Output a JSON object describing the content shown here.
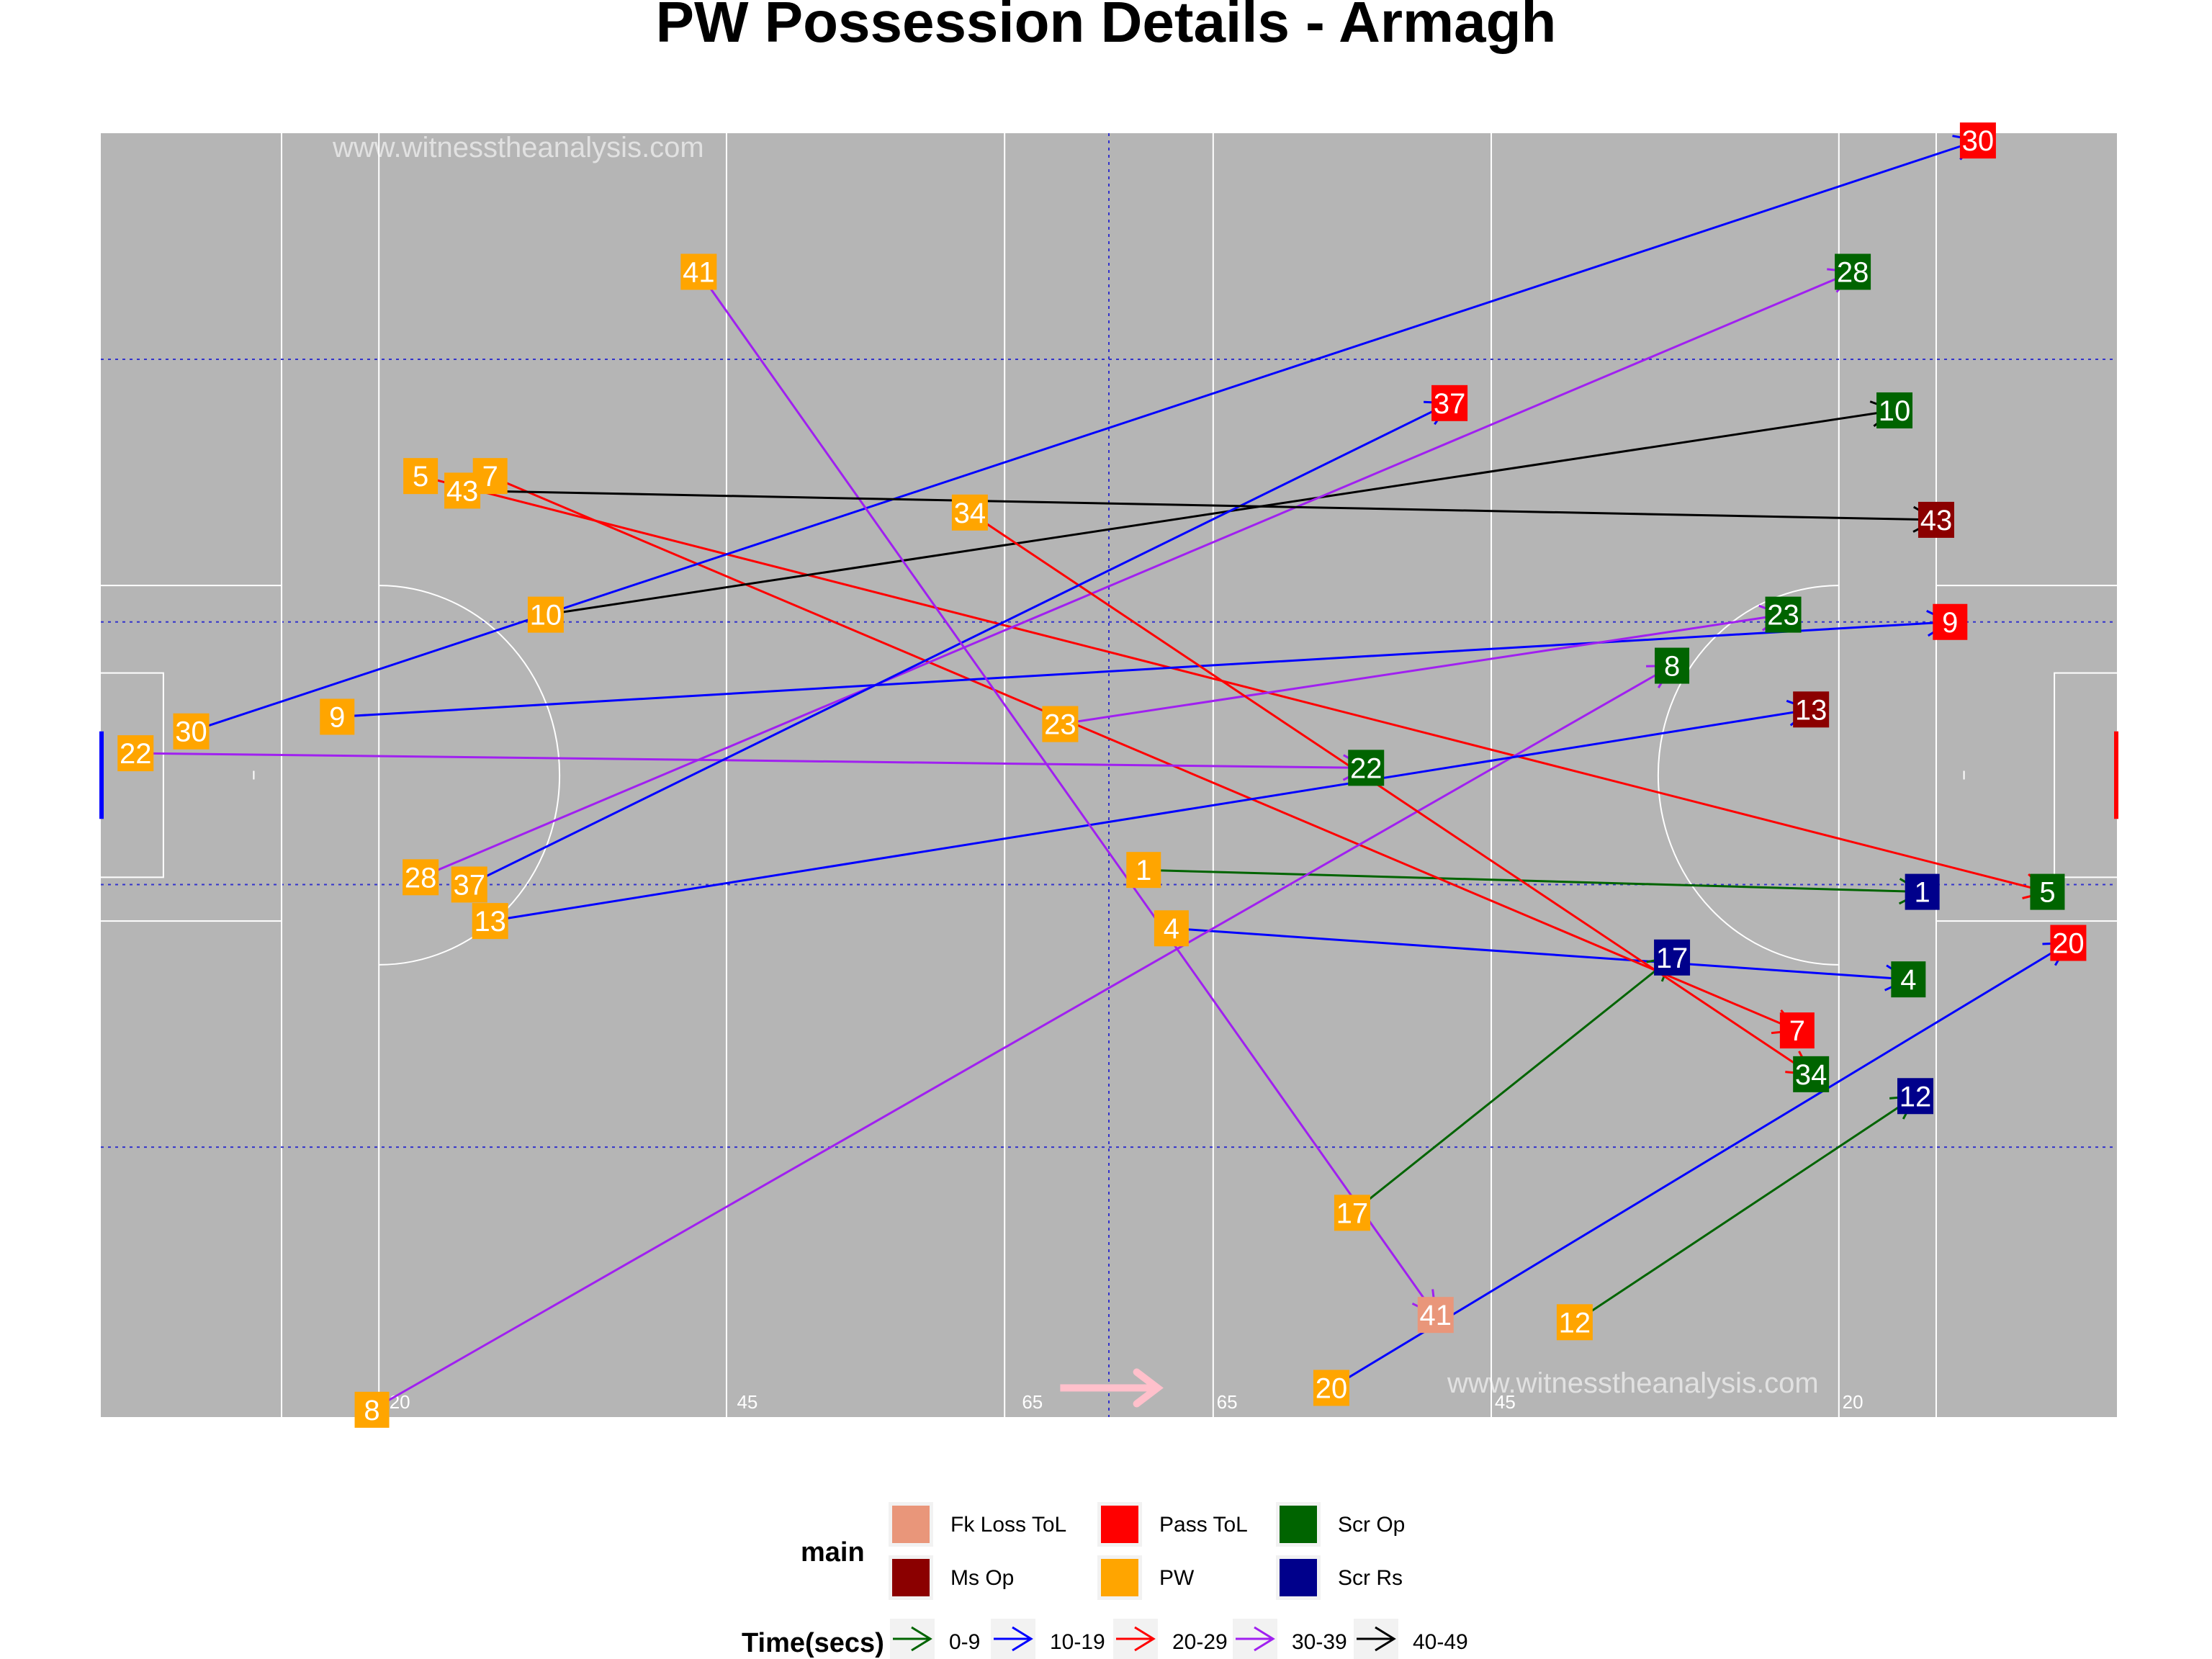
{
  "chart_data": {
    "type": "scatter",
    "title": "PW Possession Details - Armagh",
    "watermarks": [
      "www.witnesstheanalysis.com",
      "www.witnesstheanalysis.com"
    ],
    "xlim": [
      0,
      145
    ],
    "ylim": [
      0,
      88
    ],
    "pitch_tick_labels": [
      {
        "x": 21.5,
        "text": "20"
      },
      {
        "x": 46.5,
        "text": "45"
      },
      {
        "x": 67,
        "text": "65"
      },
      {
        "x": 81,
        "text": "65"
      },
      {
        "x": 101,
        "text": "45"
      },
      {
        "x": 126,
        "text": "20"
      }
    ],
    "categories": {
      "Fk Loss ToL": "#E9967A",
      "Pass ToL": "#FF0000",
      "Scr Op": "#006400",
      "Ms Op": "#8B0000",
      "PW": "#FFA500",
      "Scr Rs": "#00008B"
    },
    "time_bins": {
      "0-9": "#006400",
      "10-19": "#0000FF",
      "20-29": "#FF0000",
      "30-39": "#A020F0",
      "40-49": "#000000"
    },
    "possessions": [
      {
        "id": "1",
        "start": [
          75,
          37.5
        ],
        "end": [
          131,
          36.0
        ],
        "time": "0-9",
        "outcome": "Scr Rs"
      },
      {
        "id": "4",
        "start": [
          77,
          33.5
        ],
        "end": [
          130,
          30.0
        ],
        "time": "10-19",
        "outcome": "Scr Op"
      },
      {
        "id": "5",
        "start": [
          23,
          64.5
        ],
        "end": [
          140,
          36.0
        ],
        "time": "20-29",
        "outcome": "Scr Op"
      },
      {
        "id": "7",
        "start": [
          28,
          64.5
        ],
        "end": [
          122,
          26.5
        ],
        "time": "20-29",
        "outcome": "Pass ToL"
      },
      {
        "id": "8",
        "start": [
          19.5,
          0.5
        ],
        "end": [
          113,
          51.5
        ],
        "time": "30-39",
        "outcome": "Scr Op"
      },
      {
        "id": "9",
        "start": [
          17,
          48.0
        ],
        "end": [
          133,
          54.5
        ],
        "time": "10-19",
        "outcome": "Pass ToL"
      },
      {
        "id": "10",
        "start": [
          32,
          55.0
        ],
        "end": [
          129,
          69.0
        ],
        "time": "40-49",
        "outcome": "Scr Op"
      },
      {
        "id": "12",
        "start": [
          106,
          6.5
        ],
        "end": [
          130.5,
          22.0
        ],
        "time": "0-9",
        "outcome": "Scr Rs"
      },
      {
        "id": "13",
        "start": [
          28,
          34.0
        ],
        "end": [
          123,
          48.5
        ],
        "time": "10-19",
        "outcome": "Ms Op"
      },
      {
        "id": "17",
        "start": [
          90,
          14.0
        ],
        "end": [
          113,
          31.5
        ],
        "time": "0-9",
        "outcome": "Scr Rs"
      },
      {
        "id": "20",
        "start": [
          88.5,
          2.0
        ],
        "end": [
          141.5,
          32.5
        ],
        "time": "10-19",
        "outcome": "Pass ToL"
      },
      {
        "id": "22",
        "start": [
          2.5,
          45.5
        ],
        "end": [
          91,
          44.5
        ],
        "time": "30-39",
        "outcome": "Scr Op"
      },
      {
        "id": "23",
        "start": [
          69,
          47.5
        ],
        "end": [
          121,
          55.0
        ],
        "time": "30-39",
        "outcome": "Scr Op"
      },
      {
        "id": "28",
        "start": [
          23,
          37.0
        ],
        "end": [
          126,
          78.5
        ],
        "time": "30-39",
        "outcome": "Scr Op"
      },
      {
        "id": "30",
        "start": [
          6.5,
          47.0
        ],
        "end": [
          135,
          87.5
        ],
        "time": "10-19",
        "outcome": "Pass ToL"
      },
      {
        "id": "34",
        "start": [
          62.5,
          62.0
        ],
        "end": [
          123,
          23.5
        ],
        "time": "20-29",
        "outcome": "Scr Op"
      },
      {
        "id": "37",
        "start": [
          26.5,
          36.5
        ],
        "end": [
          97,
          69.5
        ],
        "time": "10-19",
        "outcome": "Pass ToL"
      },
      {
        "id": "41",
        "start": [
          43,
          78.5
        ],
        "end": [
          96,
          7.0
        ],
        "time": "30-39",
        "outcome": "Fk Loss ToL"
      },
      {
        "id": "43",
        "start": [
          26,
          63.5
        ],
        "end": [
          132,
          61.5
        ],
        "time": "40-49",
        "outcome": "Ms Op"
      }
    ],
    "legend": {
      "main_title": "main",
      "main_items": [
        "Fk Loss ToL",
        "Pass ToL",
        "Scr Op",
        "Ms Op",
        "PW",
        "Scr Rs"
      ],
      "time_title": "Time(secs)",
      "time_items": [
        "0-9",
        "10-19",
        "20-29",
        "30-39",
        "40-49"
      ]
    }
  }
}
